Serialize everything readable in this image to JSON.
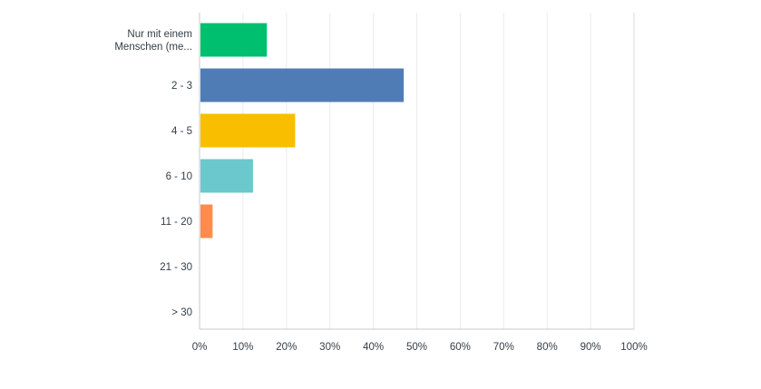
{
  "chart_data": {
    "type": "bar",
    "orientation": "horizontal",
    "categories": [
      [
        "Nur mit einem",
        "Menschen (me..."
      ],
      [
        "2 - 3"
      ],
      [
        "4 - 5"
      ],
      [
        "6 - 10"
      ],
      [
        "11 - 20"
      ],
      [
        "21 - 30"
      ],
      [
        "> 30"
      ]
    ],
    "values": [
      15.5,
      47.0,
      22.0,
      12.3,
      3.0,
      0,
      0
    ],
    "colors": [
      "#00bf6f",
      "#507cb6",
      "#f9be00",
      "#6bc8cd",
      "#ff8b4f",
      "#7fcdb8",
      "#a2bce0"
    ],
    "x_ticks": [
      "0%",
      "10%",
      "20%",
      "30%",
      "40%",
      "50%",
      "60%",
      "70%",
      "80%",
      "90%",
      "100%"
    ],
    "xlim": [
      0,
      100
    ],
    "grid": true,
    "title": "",
    "xlabel": "",
    "ylabel": ""
  }
}
